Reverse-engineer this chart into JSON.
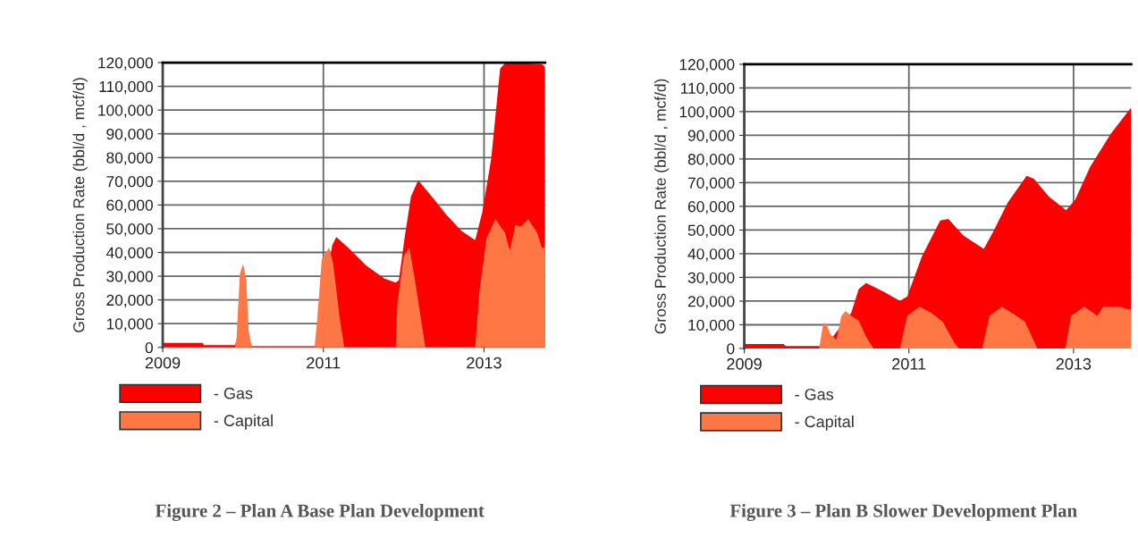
{
  "chart_data": [
    {
      "type": "area",
      "ylabel": "Gross Production Rate (bbl/d , mcf/d)",
      "annotations": [
        "Figure 2 – Plan A Base Plan Development"
      ],
      "xlim": [
        2009,
        2013.76
      ],
      "xticks": [
        2009,
        2011,
        2013
      ],
      "ylim": [
        0,
        120000
      ],
      "yticks": [
        0,
        {
          "value": 10000,
          "label": "10,000"
        },
        {
          "value": 20000,
          "label": "20,000"
        },
        {
          "value": 30000,
          "label": "30,000"
        },
        {
          "value": 40000,
          "label": "40,000"
        },
        {
          "value": 50000,
          "label": "50,000"
        },
        {
          "value": 60000,
          "label": "60,000"
        },
        {
          "value": 70000,
          "label": "70,000"
        },
        {
          "value": 80000,
          "label": "80,000"
        },
        {
          "value": 90000,
          "label": "90,000"
        },
        {
          "value": 100000,
          "label": "100,000"
        },
        {
          "value": 110000,
          "label": "110,000"
        },
        {
          "value": 120000,
          "label": "120,000"
        }
      ],
      "grid": true,
      "legend": "bottom left",
      "series": [
        {
          "name": "- Gas",
          "color": "#ff0000",
          "x": [
            2009.0,
            2009.5,
            2009.51,
            2009.9,
            2009.92,
            2010.07,
            2010.11,
            2010.9,
            2011.11,
            2011.16,
            2011.31,
            2011.53,
            2011.76,
            2011.9,
            2011.94,
            2012.01,
            2012.09,
            2012.18,
            2012.35,
            2012.53,
            2012.72,
            2012.89,
            2012.98,
            2013.09,
            2013.2,
            2013.27,
            2013.72,
            2013.76
          ],
          "values": [
            1900,
            1900,
            900,
            900,
            3000,
            3000,
            500,
            500,
            43000,
            46500,
            42000,
            34500,
            29000,
            27300,
            28300,
            45900,
            63500,
            70400,
            63500,
            55900,
            49000,
            45200,
            57200,
            79800,
            117500,
            120000,
            119400,
            118100
          ]
        },
        {
          "name": "- Capital",
          "color": "#ff7744",
          "x": [
            2009.0,
            2009.9,
            2009.92,
            2009.96,
            2010.0,
            2010.04,
            2010.07,
            2010.11,
            2010.89,
            2010.92,
            2010.98,
            2011.07,
            2011.12,
            2011.2,
            2011.26,
            2011.9,
            2011.92,
            2012.0,
            2012.07,
            2012.14,
            2012.22,
            2012.27,
            2012.89,
            2012.94,
            2013.03,
            2013.14,
            2013.26,
            2013.32,
            2013.39,
            2013.46,
            2013.55,
            2013.66,
            2013.72,
            2013.76
          ],
          "values": [
            0,
            0,
            4400,
            30800,
            35200,
            28300,
            6900,
            0,
            0,
            10700,
            37100,
            42100,
            35800,
            13200,
            0,
            0,
            18200,
            38300,
            42100,
            28300,
            10700,
            0,
            0,
            23200,
            45900,
            54000,
            48400,
            40800,
            51500,
            50900,
            54000,
            48400,
            42100,
            42100
          ]
        }
      ]
    },
    {
      "type": "area",
      "ylabel": "Gross Production Rate (bbl/d , mcf/d)",
      "annotations": [
        "Figure 3 – Plan B Slower Development Plan"
      ],
      "xlim": [
        2009,
        2013.7
      ],
      "xticks": [
        2009,
        2011,
        2013
      ],
      "ylim": [
        0,
        120000
      ],
      "yticks": [
        0,
        {
          "value": 10000,
          "label": "10,000"
        },
        {
          "value": 20000,
          "label": "20,000"
        },
        {
          "value": 30000,
          "label": "30,000"
        },
        {
          "value": 40000,
          "label": "40,000"
        },
        {
          "value": 50000,
          "label": "50,000"
        },
        {
          "value": 60000,
          "label": "60,000"
        },
        {
          "value": 70000,
          "label": "70,000"
        },
        {
          "value": 80000,
          "label": "80,000"
        },
        {
          "value": 90000,
          "label": "90,000"
        },
        {
          "value": 100000,
          "label": "100,000"
        },
        {
          "value": 110000,
          "label": "110,000"
        },
        {
          "value": 120000,
          "label": "120,000"
        }
      ],
      "grid": true,
      "legend": "bottom left",
      "series": [
        {
          "name": "- Gas",
          "color": "#ff0000",
          "x": [
            2009.0,
            2009.48,
            2009.5,
            2009.91,
            2010.05,
            2010.3,
            2010.39,
            2010.48,
            2010.7,
            2010.89,
            2010.98,
            2011.16,
            2011.38,
            2011.48,
            2011.66,
            2011.91,
            2012.02,
            2012.2,
            2012.43,
            2012.52,
            2012.7,
            2012.91,
            2013.02,
            2013.2,
            2013.45,
            2013.7
          ],
          "values": [
            1900,
            1900,
            1000,
            1000,
            3800,
            15100,
            25100,
            27600,
            23900,
            20100,
            22000,
            39000,
            54000,
            54700,
            47700,
            42100,
            49000,
            61600,
            72900,
            71600,
            64100,
            58400,
            62800,
            76600,
            90500,
            101800
          ]
        },
        {
          "name": "- Capital",
          "color": "#ff7744",
          "x": [
            2009.0,
            2009.91,
            2009.96,
            2010.0,
            2010.05,
            2010.12,
            2010.18,
            2010.23,
            2010.3,
            2010.39,
            2010.48,
            2010.57,
            2010.89,
            2010.98,
            2011.13,
            2011.27,
            2011.41,
            2011.55,
            2011.61,
            2011.89,
            2011.98,
            2012.13,
            2012.31,
            2012.41,
            2012.56,
            2012.9,
            2012.97,
            2013.13,
            2013.29,
            2013.36,
            2013.56,
            2013.7
          ],
          "values": [
            0,
            0,
            10700,
            10100,
            5700,
            3800,
            13800,
            15700,
            13800,
            11900,
            5000,
            0,
            0,
            13800,
            17600,
            15100,
            11300,
            2500,
            0,
            0,
            13800,
            17600,
            13800,
            11300,
            0,
            0,
            13800,
            17600,
            13800,
            17600,
            17600,
            16300
          ]
        }
      ]
    }
  ]
}
